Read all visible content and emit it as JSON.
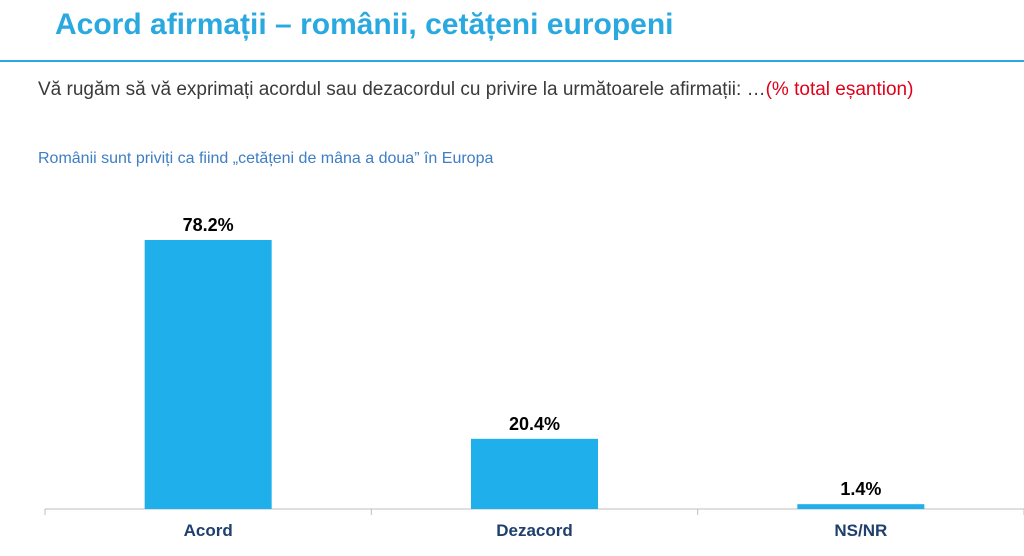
{
  "header": {
    "title": "Acord afirmații – românii, cetățeni europeni"
  },
  "question": {
    "text": "Vă rugăm să vă exprimați acordul sau dezacordul cu privire la următoarele afirmații: …",
    "note": "(% total eșantion)"
  },
  "colors": {
    "title": "#2aa9e0",
    "bar": "#1fb0ec",
    "note": "#e0001a",
    "subtitle": "#3d7ec5",
    "category": "#1f3f6e"
  },
  "chart_data": {
    "type": "bar",
    "title": "Românii sunt priviți ca fiind „cetățeni de mâna a doua” în Europa",
    "categories": [
      "Acord",
      "Dezacord",
      "NS/NR"
    ],
    "values": [
      78.2,
      20.4,
      1.4
    ],
    "value_labels": [
      "78.2%",
      "20.4%",
      "1.4%"
    ],
    "ylim": [
      0,
      100
    ],
    "grid": false,
    "legend": "none"
  }
}
